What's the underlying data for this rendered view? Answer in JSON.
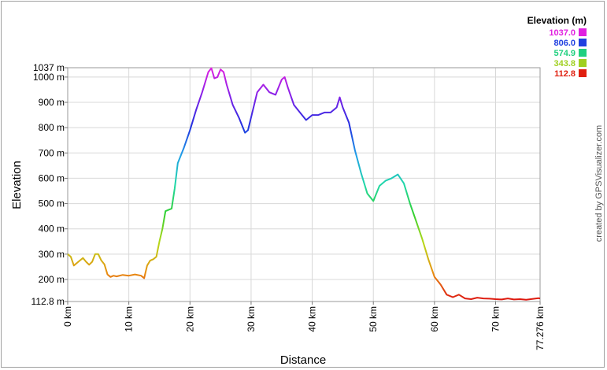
{
  "chart_data": {
    "type": "line",
    "xlabel": "Distance",
    "ylabel": "Elevation",
    "x_unit": "km",
    "y_unit": "m",
    "xlim": [
      0,
      77.276
    ],
    "ylim": [
      112.8,
      1037
    ],
    "x_ticks": [
      {
        "value": 0,
        "label": "0 km"
      },
      {
        "value": 10,
        "label": "10 km"
      },
      {
        "value": 20,
        "label": "20 km"
      },
      {
        "value": 30,
        "label": "30 km"
      },
      {
        "value": 40,
        "label": "40 km"
      },
      {
        "value": 50,
        "label": "50 km"
      },
      {
        "value": 60,
        "label": "60 km"
      },
      {
        "value": 70,
        "label": "70 km"
      },
      {
        "value": 77.276,
        "label": "77.276 km"
      }
    ],
    "y_ticks": [
      {
        "value": 112.8,
        "label": "112.8 m"
      },
      {
        "value": 200,
        "label": "200 m"
      },
      {
        "value": 300,
        "label": "300 m"
      },
      {
        "value": 400,
        "label": "400 m"
      },
      {
        "value": 500,
        "label": "500 m"
      },
      {
        "value": 600,
        "label": "600 m"
      },
      {
        "value": 700,
        "label": "700 m"
      },
      {
        "value": 800,
        "label": "800 m"
      },
      {
        "value": 900,
        "label": "900 m"
      },
      {
        "value": 1000,
        "label": "1000 m"
      },
      {
        "value": 1037,
        "label": "1037 m"
      }
    ],
    "grid": true,
    "legend": {
      "position": "top-right",
      "title": "Elevation (m)",
      "entries": [
        {
          "label": "1037.0",
          "color": "#e020e0"
        },
        {
          "label": "806.0",
          "color": "#2040e0"
        },
        {
          "label": "574.9",
          "color": "#20d080"
        },
        {
          "label": "343.8",
          "color": "#a0d020"
        },
        {
          "label": "112.8",
          "color": "#e02010"
        }
      ]
    },
    "color_stops": [
      {
        "value": 112.8,
        "color": "#dd1010"
      },
      {
        "value": 228.3,
        "color": "#e89010"
      },
      {
        "value": 343.8,
        "color": "#b8d818"
      },
      {
        "value": 459.4,
        "color": "#30d030"
      },
      {
        "value": 574.9,
        "color": "#20d8a8"
      },
      {
        "value": 690.5,
        "color": "#20a0e8"
      },
      {
        "value": 806.0,
        "color": "#2030e0"
      },
      {
        "value": 921.5,
        "color": "#8020e8"
      },
      {
        "value": 1037.0,
        "color": "#e020e0"
      }
    ],
    "x": [
      0,
      0.5,
      1,
      1.5,
      2,
      2.5,
      3,
      3.5,
      4,
      4.5,
      5,
      5.5,
      6,
      6.5,
      7,
      7.5,
      8,
      9,
      10,
      11,
      12,
      12.5,
      13,
      13.5,
      14,
      14.5,
      15,
      15.5,
      16,
      16.5,
      17,
      17.5,
      18,
      19,
      20,
      21,
      22,
      23,
      23.5,
      24,
      24.5,
      25,
      25.5,
      26,
      27,
      28,
      29,
      29.5,
      30,
      31,
      32,
      33,
      34,
      35,
      35.5,
      36,
      37,
      38,
      39,
      40,
      41,
      42,
      43,
      44,
      44.5,
      45,
      46,
      47,
      48,
      49,
      50,
      50.5,
      51,
      52,
      53,
      54,
      55,
      56,
      57,
      58,
      59,
      60,
      61,
      62,
      63,
      64,
      65,
      66,
      67,
      68,
      69,
      70,
      71,
      72,
      73,
      74,
      75,
      76,
      77,
      77.276
    ],
    "y": [
      300,
      290,
      255,
      265,
      275,
      285,
      270,
      258,
      270,
      300,
      300,
      275,
      260,
      220,
      210,
      215,
      212,
      218,
      215,
      220,
      215,
      205,
      255,
      275,
      280,
      290,
      350,
      400,
      470,
      475,
      480,
      560,
      660,
      720,
      790,
      870,
      940,
      1020,
      1035,
      995,
      1000,
      1030,
      1020,
      970,
      890,
      840,
      780,
      790,
      840,
      940,
      970,
      940,
      930,
      990,
      1000,
      960,
      890,
      860,
      830,
      850,
      850,
      860,
      860,
      880,
      920,
      880,
      820,
      710,
      620,
      540,
      510,
      540,
      570,
      590,
      600,
      615,
      580,
      500,
      430,
      360,
      280,
      210,
      180,
      140,
      130,
      140,
      125,
      122,
      128,
      125,
      124,
      122,
      121,
      125,
      121,
      122,
      120,
      123,
      126,
      125
    ]
  },
  "credit": "created by GPSVisualizer.com"
}
